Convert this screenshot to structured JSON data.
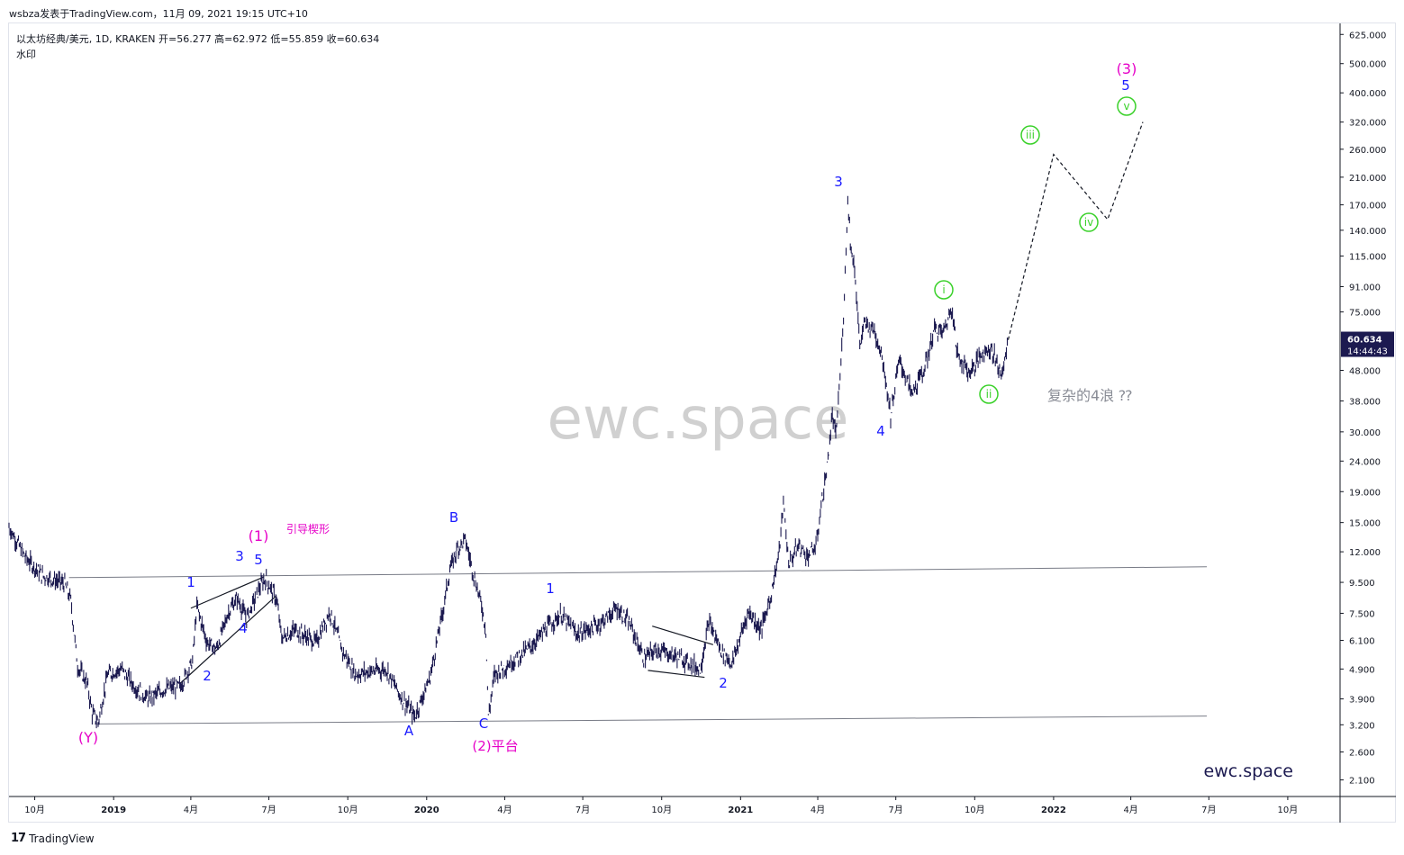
{
  "header": {
    "publish_line": "wsbza发表于TradingView.com，11月 09, 2021 19:15 UTC+10",
    "symbol_line": "以太坊经典/美元, 1D, KRAKEN  开=56.277  高=62.972  低=55.859  收=60.634",
    "watermark_label": "水印"
  },
  "chart_data": {
    "type": "line",
    "scale": "log",
    "ylim": [
      1.85,
      680
    ],
    "x_ticks": [
      "10月",
      "2019",
      "4月",
      "7月",
      "10月",
      "2020",
      "4月",
      "7月",
      "10月",
      "2021",
      "4月",
      "7月",
      "10月",
      "2022",
      "4月",
      "7月",
      "10月"
    ],
    "y_ticks": [
      "625.000",
      "500.000",
      "400.000",
      "320.000",
      "260.000",
      "210.000",
      "170.000",
      "140.000",
      "115.000",
      "91.000",
      "75.000",
      "60.634",
      "48.000",
      "38.000",
      "30.000",
      "24.000",
      "19.000",
      "15.000",
      "12.000",
      "9.500",
      "7.500",
      "6.100",
      "4.900",
      "3.900",
      "3.200",
      "2.600",
      "2.100"
    ],
    "last_price": "60.634",
    "countdown": "14:44:43",
    "price_series": [
      [
        "2018-09-01",
        14.5
      ],
      [
        "2018-09-20",
        11.5
      ],
      [
        "2018-10-10",
        10.0
      ],
      [
        "2018-11-05",
        9.4
      ],
      [
        "2018-11-12",
        8.3
      ],
      [
        "2018-11-20",
        5.0
      ],
      [
        "2018-12-01",
        4.4
      ],
      [
        "2018-12-07",
        3.5
      ],
      [
        "2018-12-14",
        3.25
      ],
      [
        "2018-12-25",
        4.7
      ],
      [
        "2019-01-10",
        4.9
      ],
      [
        "2019-01-25",
        4.3
      ],
      [
        "2019-02-10",
        3.9
      ],
      [
        "2019-03-01",
        4.2
      ],
      [
        "2019-03-20",
        4.3
      ],
      [
        "2019-04-03",
        5.2
      ],
      [
        "2019-04-08",
        7.9
      ],
      [
        "2019-04-20",
        6.0
      ],
      [
        "2019-05-01",
        5.7
      ],
      [
        "2019-05-15",
        7.6
      ],
      [
        "2019-05-25",
        8.4
      ],
      [
        "2019-06-05",
        7.2
      ],
      [
        "2019-06-20",
        9.1
      ],
      [
        "2019-06-27",
        9.8
      ],
      [
        "2019-07-10",
        8.3
      ],
      [
        "2019-07-16",
        6.2
      ],
      [
        "2019-08-01",
        6.6
      ],
      [
        "2019-08-25",
        6.0
      ],
      [
        "2019-09-10",
        7.6
      ],
      [
        "2019-09-25",
        5.6
      ],
      [
        "2019-10-10",
        4.7
      ],
      [
        "2019-10-25",
        4.8
      ],
      [
        "2019-11-15",
        4.9
      ],
      [
        "2019-12-01",
        4.0
      ],
      [
        "2019-12-18",
        3.4
      ],
      [
        "2020-01-05",
        4.6
      ],
      [
        "2020-01-20",
        7.7
      ],
      [
        "2020-01-28",
        10.4
      ],
      [
        "2020-02-05",
        12.2
      ],
      [
        "2020-02-15",
        13.2
      ],
      [
        "2020-02-25",
        10.0
      ],
      [
        "2020-03-05",
        8.0
      ],
      [
        "2020-03-10",
        6.6
      ],
      [
        "2020-03-13",
        3.4
      ],
      [
        "2020-03-20",
        4.7
      ],
      [
        "2020-04-10",
        5.2
      ],
      [
        "2020-05-01",
        5.8
      ],
      [
        "2020-05-20",
        6.7
      ],
      [
        "2020-06-05",
        7.4
      ],
      [
        "2020-06-25",
        6.4
      ],
      [
        "2020-07-20",
        6.9
      ],
      [
        "2020-08-10",
        7.8
      ],
      [
        "2020-08-25",
        6.9
      ],
      [
        "2020-09-10",
        5.3
      ],
      [
        "2020-09-25",
        5.7
      ],
      [
        "2020-10-25",
        5.3
      ],
      [
        "2020-11-15",
        4.9
      ],
      [
        "2020-11-25",
        7.0
      ],
      [
        "2020-12-10",
        5.6
      ],
      [
        "2020-12-22",
        5.1
      ],
      [
        "2021-01-10",
        7.6
      ],
      [
        "2021-01-25",
        6.6
      ],
      [
        "2021-02-05",
        8.5
      ],
      [
        "2021-02-15",
        12.0
      ],
      [
        "2021-02-20",
        17.5
      ],
      [
        "2021-02-26",
        11.0
      ],
      [
        "2021-03-10",
        12.6
      ],
      [
        "2021-03-20",
        11.6
      ],
      [
        "2021-03-30",
        12.5
      ],
      [
        "2021-04-05",
        17.0
      ],
      [
        "2021-04-12",
        23.0
      ],
      [
        "2021-04-18",
        34.0
      ],
      [
        "2021-04-22",
        29.0
      ],
      [
        "2021-04-28",
        50.0
      ],
      [
        "2021-05-02",
        85.0
      ],
      [
        "2021-05-06",
        176.0
      ],
      [
        "2021-05-10",
        120.0
      ],
      [
        "2021-05-14",
        105.0
      ],
      [
        "2021-05-20",
        58.0
      ],
      [
        "2021-05-25",
        68.0
      ],
      [
        "2021-06-05",
        66.0
      ],
      [
        "2021-06-15",
        54.0
      ],
      [
        "2021-06-25",
        34.0
      ],
      [
        "2021-07-05",
        52.0
      ],
      [
        "2021-07-20",
        40.0
      ],
      [
        "2021-08-05",
        50.0
      ],
      [
        "2021-08-15",
        66.0
      ],
      [
        "2021-08-25",
        64.0
      ],
      [
        "2021-09-05",
        78.0
      ],
      [
        "2021-09-10",
        55.0
      ],
      [
        "2021-09-25",
        47.0
      ],
      [
        "2021-10-10",
        55.0
      ],
      [
        "2021-10-20",
        57.0
      ],
      [
        "2021-10-28",
        50.0
      ],
      [
        "2021-11-02",
        46.0
      ],
      [
        "2021-11-09",
        60.6
      ]
    ],
    "projection": [
      [
        "2021-11-09",
        60.6
      ],
      [
        "2022-01-01",
        250.0
      ],
      [
        "2022-03-05",
        152.0
      ],
      [
        "2022-04-15",
        320.0
      ]
    ],
    "annotations": {
      "blue_labels": [
        "3",
        "4",
        "B",
        "A",
        "C",
        "1",
        "2",
        "1",
        "2",
        "3",
        "4",
        "5",
        "5"
      ],
      "magenta_labels": [
        "(1)",
        "(Y)",
        "(2)平台",
        "(3)",
        "引导楔形"
      ],
      "green_circles": [
        "i",
        "ii",
        "iii",
        "iv",
        "v"
      ],
      "note": "复杂的4浪 ⁇"
    },
    "colors": {
      "candles": "#1c1a50",
      "blue_label": "#1a1aff",
      "magenta_label": "#e600c8",
      "green_circle": "#3ad12a",
      "channel": "#787b86",
      "price_tag": "#1c1a50"
    },
    "watermark": "ewc.space",
    "brand": "ewc.space"
  },
  "footer": {
    "brand": "TradingView",
    "logo": "17"
  }
}
